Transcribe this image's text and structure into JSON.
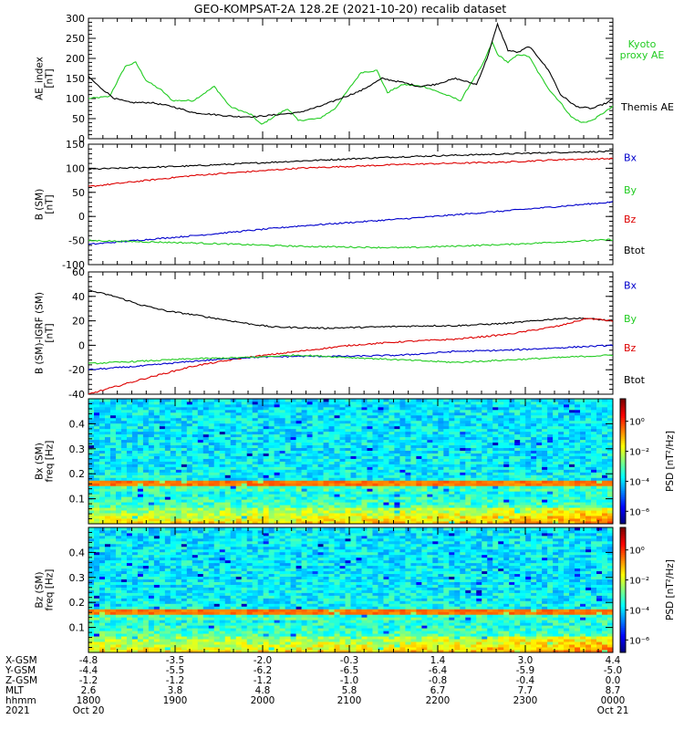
{
  "title": "GEO-KOMPSAT-2A 128.2E (2021-10-20) recalib dataset",
  "colors": {
    "black": "#000000",
    "red": "#dd0000",
    "green": "#22cc22",
    "blue": "#0000cc"
  },
  "chart_data": [
    {
      "type": "line",
      "ylabel": "AE_index [nT]",
      "ylim": [
        0,
        300
      ],
      "yticks": [
        "0",
        "50",
        "100",
        "150",
        "200",
        "250",
        "300"
      ],
      "legend": [
        {
          "label": "Kyoto proxy AE",
          "color": "#22cc22"
        },
        {
          "label": "Themis AE",
          "color": "#000000"
        }
      ],
      "series": [
        {
          "name": "Kyoto proxy AE",
          "color": "#22cc22",
          "x": [
            0,
            0.04,
            0.07,
            0.09,
            0.11,
            0.14,
            0.16,
            0.2,
            0.24,
            0.27,
            0.29,
            0.31,
            0.33,
            0.36,
            0.38,
            0.4,
            0.42,
            0.44,
            0.47,
            0.5,
            0.52,
            0.55,
            0.57,
            0.6,
            0.64,
            0.68,
            0.71,
            0.73,
            0.75,
            0.77,
            0.78,
            0.8,
            0.82,
            0.84,
            0.86,
            0.88,
            0.9,
            0.92,
            0.94,
            0.96,
            1.0
          ],
          "y": [
            100,
            105,
            180,
            190,
            145,
            120,
            95,
            95,
            130,
            80,
            70,
            60,
            35,
            60,
            75,
            45,
            48,
            50,
            75,
            130,
            165,
            170,
            115,
            135,
            130,
            110,
            95,
            140,
            180,
            240,
            210,
            190,
            210,
            205,
            160,
            120,
            90,
            55,
            40,
            45,
            80
          ]
        },
        {
          "name": "Themis AE",
          "color": "#000000",
          "x": [
            0,
            0.02,
            0.05,
            0.08,
            0.12,
            0.16,
            0.2,
            0.24,
            0.28,
            0.32,
            0.36,
            0.4,
            0.44,
            0.48,
            0.52,
            0.56,
            0.6,
            0.63,
            0.66,
            0.7,
            0.74,
            0.76,
            0.78,
            0.8,
            0.82,
            0.84,
            0.86,
            0.88,
            0.9,
            0.93,
            0.96,
            0.99,
            1.0
          ],
          "y": [
            155,
            130,
            100,
            90,
            90,
            80,
            65,
            60,
            55,
            55,
            60,
            65,
            80,
            100,
            120,
            150,
            140,
            130,
            135,
            150,
            135,
            200,
            285,
            220,
            215,
            230,
            200,
            165,
            110,
            80,
            75,
            90,
            100
          ]
        }
      ]
    },
    {
      "type": "line",
      "ylabel": "B (SM) [nT]",
      "ylim": [
        -100,
        150
      ],
      "yticks": [
        "-100",
        "-50",
        "0",
        "50",
        "100",
        "150"
      ],
      "legend": [
        {
          "label": "Bx",
          "color": "#0000cc"
        },
        {
          "label": "By",
          "color": "#22cc22"
        },
        {
          "label": "Bz",
          "color": "#dd0000"
        },
        {
          "label": "Btot",
          "color": "#000000"
        }
      ],
      "series": [
        {
          "name": "Btot",
          "color": "#000000",
          "x": [
            0,
            0.2,
            0.4,
            0.6,
            0.8,
            0.9,
            1.0
          ],
          "y": [
            98,
            105,
            115,
            124,
            130,
            133,
            135
          ]
        },
        {
          "name": "Bz",
          "color": "#dd0000",
          "x": [
            0,
            0.2,
            0.4,
            0.6,
            0.8,
            0.9,
            1.0
          ],
          "y": [
            62,
            85,
            100,
            108,
            113,
            118,
            120
          ]
        },
        {
          "name": "Bx",
          "color": "#0000cc",
          "x": [
            0,
            0.2,
            0.4,
            0.6,
            0.8,
            1.0
          ],
          "y": [
            -58,
            -40,
            -20,
            -5,
            12,
            30
          ]
        },
        {
          "name": "By",
          "color": "#22cc22",
          "x": [
            0,
            0.2,
            0.4,
            0.6,
            0.8,
            1.0
          ],
          "y": [
            -50,
            -55,
            -62,
            -65,
            -58,
            -48
          ]
        }
      ]
    },
    {
      "type": "line",
      "ylabel": "B (SM)-IGRF (SM) [nT]",
      "ylim": [
        -40,
        60
      ],
      "yticks": [
        "-40",
        "-20",
        "0",
        "20",
        "40",
        "60"
      ],
      "legend": [
        {
          "label": "Bx",
          "color": "#0000cc"
        },
        {
          "label": "By",
          "color": "#22cc22"
        },
        {
          "label": "Bz",
          "color": "#dd0000"
        },
        {
          "label": "Btot",
          "color": "#000000"
        }
      ],
      "series": [
        {
          "name": "Btot",
          "color": "#000000",
          "x": [
            0,
            0.05,
            0.1,
            0.15,
            0.2,
            0.3,
            0.35,
            0.45,
            0.55,
            0.65,
            0.7,
            0.8,
            0.9,
            0.95,
            1.0
          ],
          "y": [
            45,
            40,
            33,
            28,
            25,
            18,
            15,
            14,
            15,
            16,
            16,
            18,
            22,
            22,
            20
          ]
        },
        {
          "name": "Bz",
          "color": "#dd0000",
          "x": [
            0,
            0.1,
            0.2,
            0.3,
            0.4,
            0.5,
            0.6,
            0.7,
            0.8,
            0.9,
            0.95,
            1.0
          ],
          "y": [
            -40,
            -28,
            -17,
            -10,
            -5,
            0,
            3,
            5,
            9,
            16,
            22,
            20
          ]
        },
        {
          "name": "Bx",
          "color": "#0000cc",
          "x": [
            0,
            0.1,
            0.2,
            0.3,
            0.4,
            0.5,
            0.6,
            0.7,
            0.8,
            0.9,
            1.0
          ],
          "y": [
            -20,
            -17,
            -13,
            -10,
            -9,
            -9,
            -8,
            -5,
            -4,
            -2,
            0
          ]
        },
        {
          "name": "By",
          "color": "#22cc22",
          "x": [
            0,
            0.1,
            0.2,
            0.3,
            0.4,
            0.5,
            0.6,
            0.7,
            0.8,
            0.9,
            1.0
          ],
          "y": [
            -15,
            -13,
            -11,
            -10,
            -8,
            -10,
            -12,
            -14,
            -12,
            -10,
            -8
          ]
        }
      ]
    },
    {
      "type": "heatmap",
      "ylabel": "Bx (SM) freq [Hz]",
      "ylim": [
        0,
        0.5
      ],
      "yticks": [
        "0.1",
        "0.2",
        "0.3",
        "0.4"
      ],
      "colorbar_label": "PSD [nT²/Hz]",
      "colorbar_ticks": [
        "10⁰",
        "10⁻²",
        "10⁻⁴",
        "10⁻⁶"
      ]
    },
    {
      "type": "heatmap",
      "ylabel": "Bz (SM) freq [Hz]",
      "ylim": [
        0,
        0.5
      ],
      "yticks": [
        "0.1",
        "0.2",
        "0.3",
        "0.4"
      ],
      "colorbar_label": "PSD [nT²/Hz]",
      "colorbar_ticks": [
        "10⁰",
        "10⁻²",
        "10⁻⁴",
        "10⁻⁶"
      ]
    }
  ],
  "x_axis": {
    "row_labels": [
      "X-GSM",
      "Y-GSM",
      "Z-GSM",
      "MLT",
      "hhmm",
      "2021"
    ],
    "columns": [
      [
        "-4.8",
        "-4.4",
        "-1.2",
        "2.6",
        "1800",
        "Oct 20"
      ],
      [
        "-3.5",
        "-5.5",
        "-1.2",
        "3.8",
        "1900",
        ""
      ],
      [
        "-2.0",
        "-6.2",
        "-1.2",
        "4.8",
        "2000",
        ""
      ],
      [
        "-0.3",
        "-6.5",
        "-1.0",
        "5.8",
        "2100",
        ""
      ],
      [
        "1.4",
        "-6.4",
        "-0.8",
        "6.7",
        "2200",
        ""
      ],
      [
        "3.0",
        "-5.9",
        "-0.4",
        "7.7",
        "2300",
        ""
      ],
      [
        "4.4",
        "-5.0",
        "0.0",
        "8.7",
        "0000",
        "Oct 21"
      ]
    ]
  }
}
